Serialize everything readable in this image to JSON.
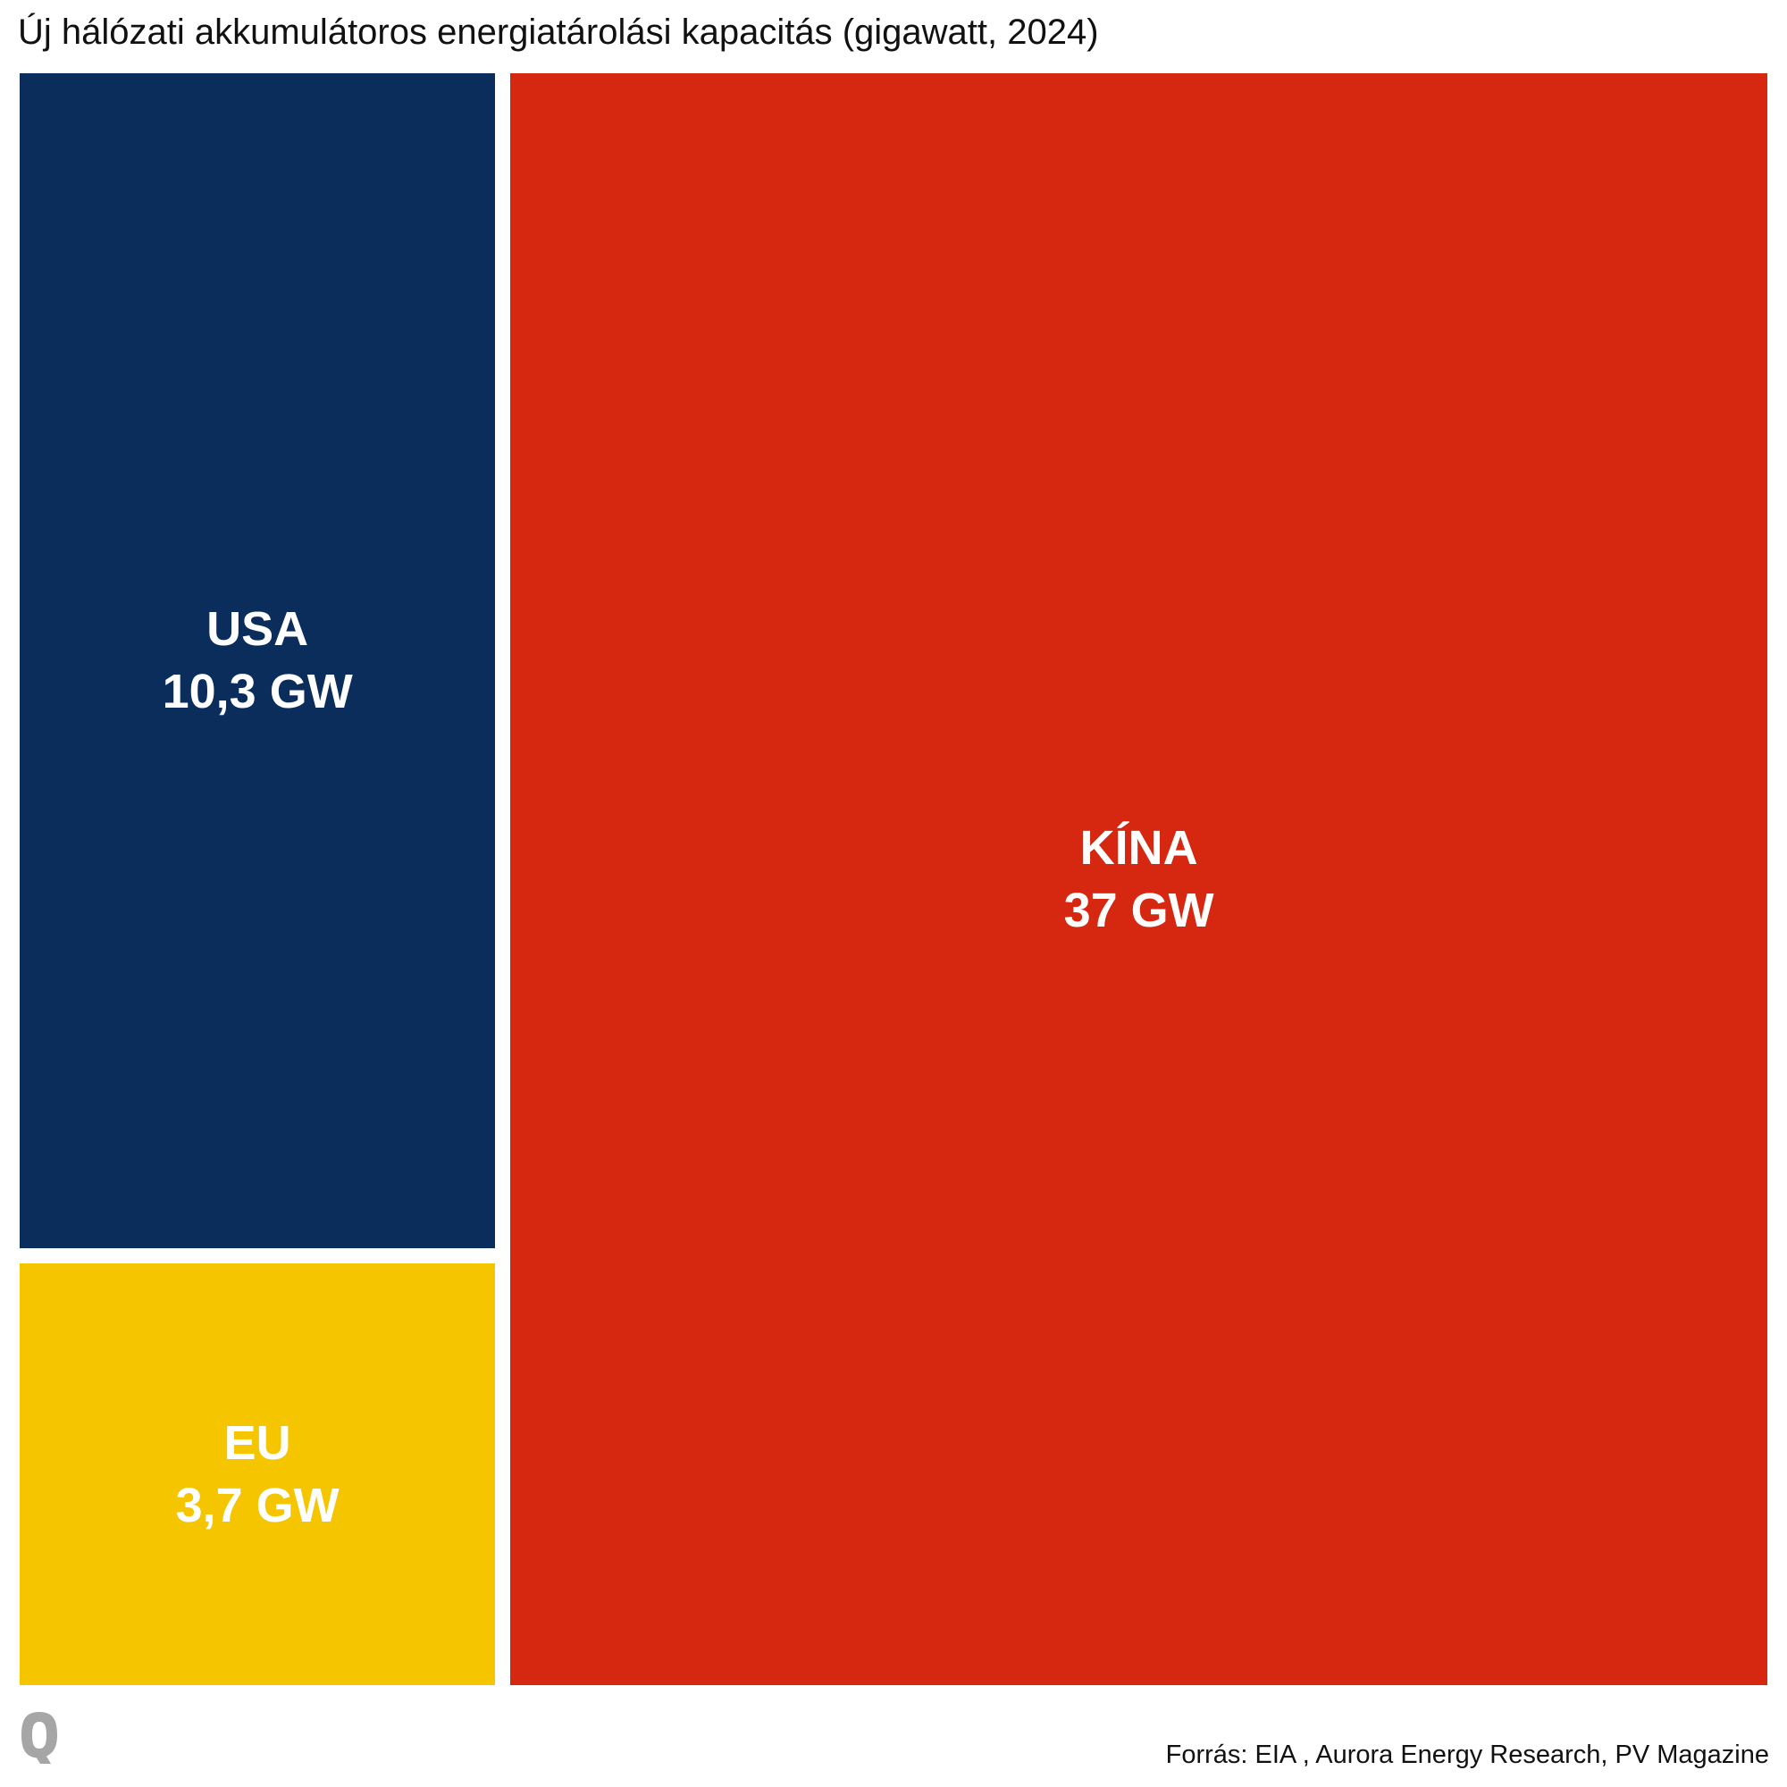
{
  "title": "Új hálózati akkumulátoros energiatárolási kapacitás (gigawatt, 2024)",
  "source": "Forrás: EIA , Aurora Energy Research, PV Magazine",
  "logo_icon": "q-logo-icon",
  "colors": {
    "usa": "#0b2d5c",
    "eu": "#f5c500",
    "china": "#d62811",
    "logo": "#a6a6a6"
  },
  "chart_data": {
    "type": "treemap",
    "title": "Új hálózati akkumulátoros energiatárolási kapacitás (gigawatt, 2024)",
    "unit": "GW",
    "items": [
      {
        "name": "USA",
        "value": 10.3,
        "value_label": "10,3 GW",
        "color": "#0b2d5c"
      },
      {
        "name": "EU",
        "value": 3.7,
        "value_label": "3,7 GW",
        "color": "#f5c500"
      },
      {
        "name": "KÍNA",
        "value": 37,
        "value_label": "37 GW",
        "color": "#d62811"
      }
    ]
  }
}
